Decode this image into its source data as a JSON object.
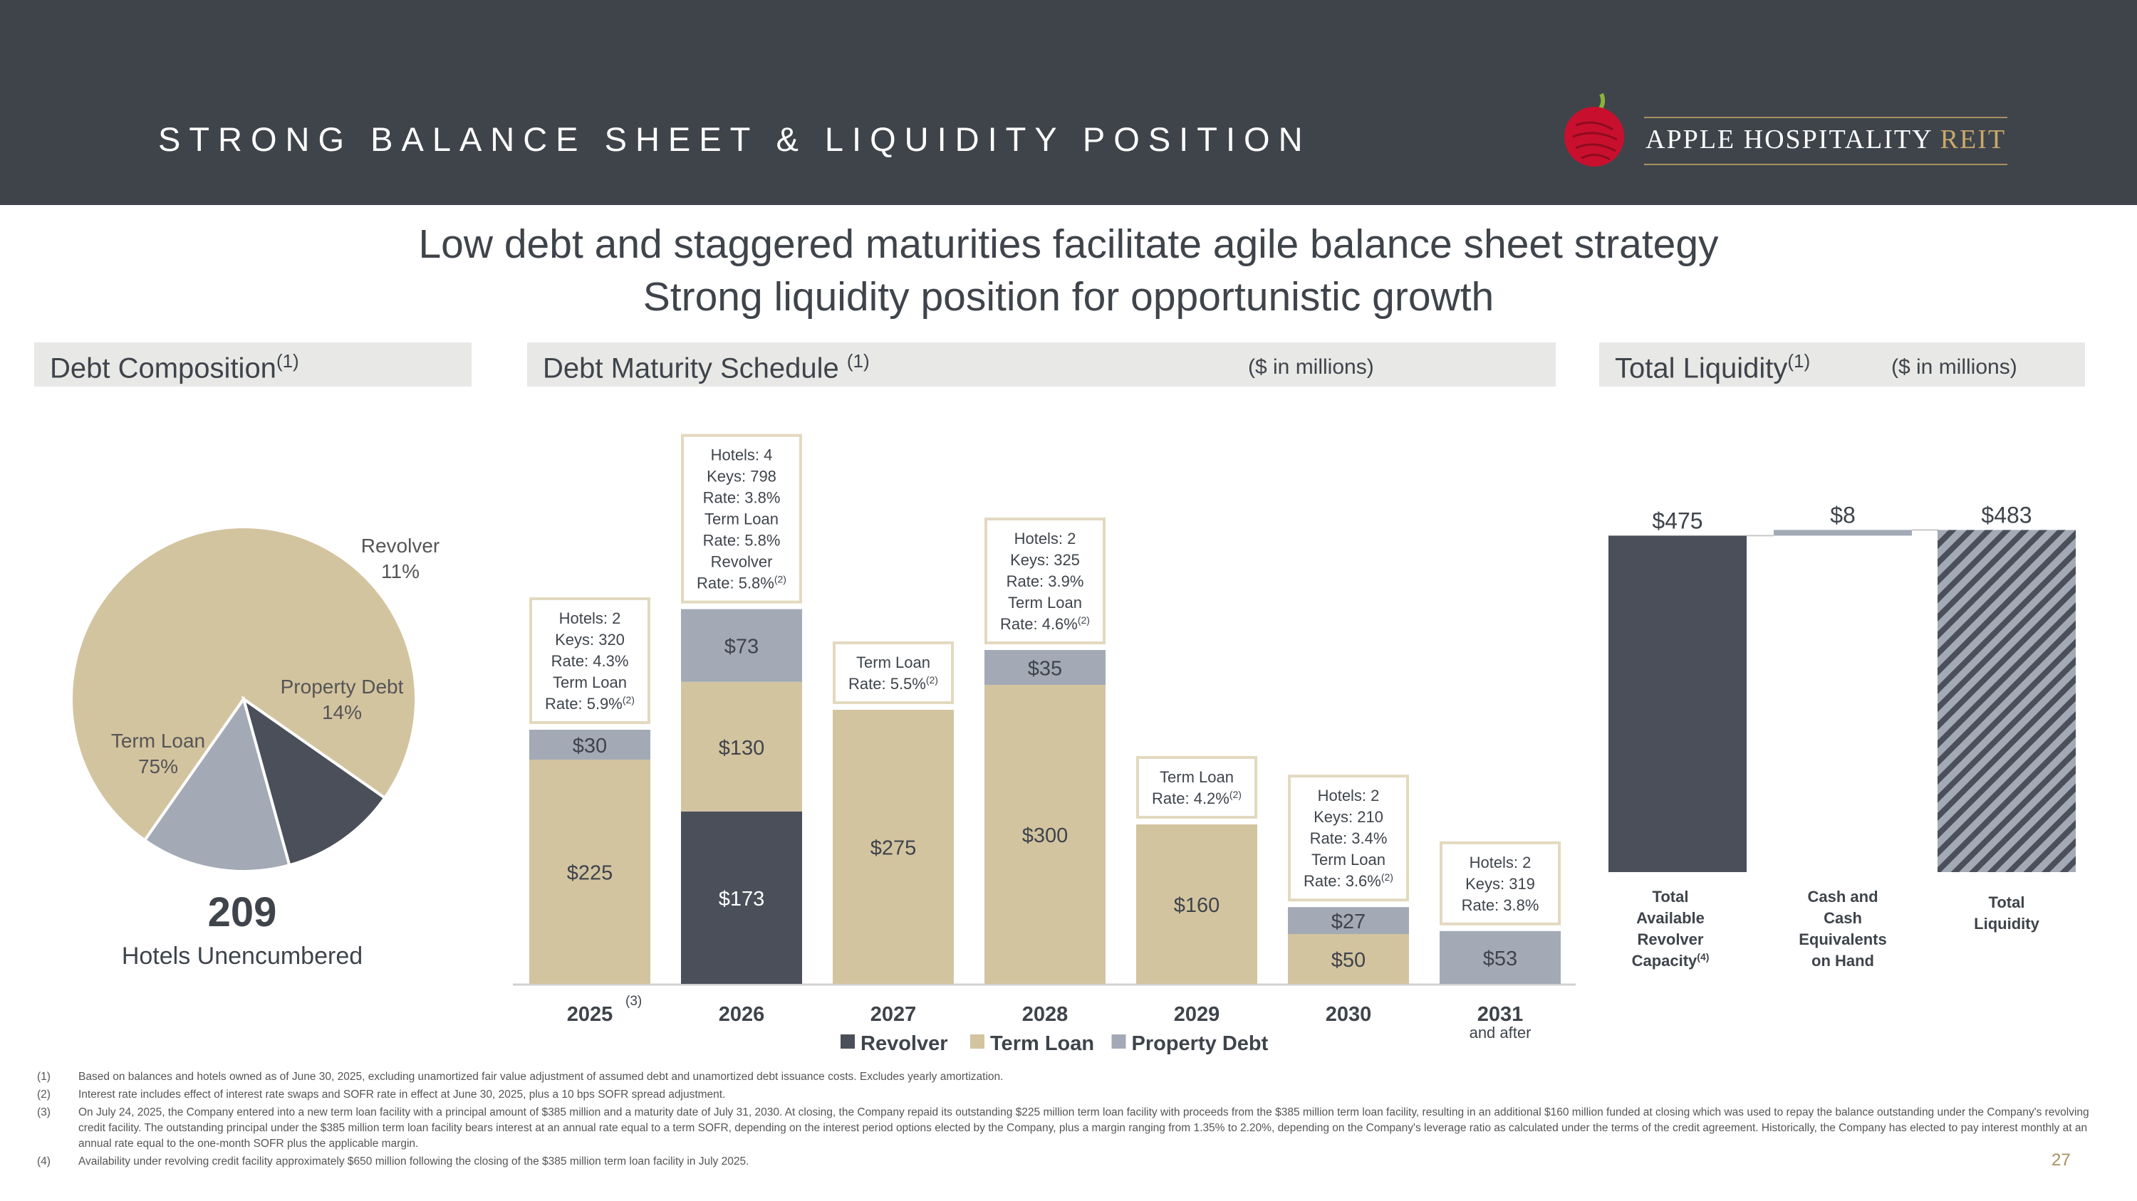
{
  "slide": {
    "title": "STRONG BALANCE SHEET & LIQUIDITY POSITION",
    "logo_text_main": "APPLE HOSPITALITY",
    "logo_text_accent": "REIT",
    "headline_1": "Low debt and staggered maturities facilitate agile balance sheet strategy",
    "headline_2": "Strong liquidity position for opportunistic growth",
    "page_number": "27"
  },
  "colors": {
    "header_bg": "#3f444b",
    "revolver": "#4a4f59",
    "term_loan": "#d3c4a0",
    "property_debt": "#a3aab6",
    "accent": "#c9a86a"
  },
  "debt_composition": {
    "title": "Debt Composition",
    "title_note": "(1)",
    "unencumbered_count": "209",
    "unencumbered_label": "Hotels Unencumbered"
  },
  "maturity_panel": {
    "title": "Debt Maturity Schedule",
    "title_note": "(1)",
    "units": "($ in millions)"
  },
  "liquidity_panel": {
    "title": "Total Liquidity",
    "title_note": "(1)",
    "units": "($ in millions)"
  },
  "chart_data": [
    {
      "type": "pie",
      "title": "Debt Composition",
      "slices": [
        {
          "label": "Term Loan",
          "pct_label": "75%",
          "value": 75,
          "color": "#d3c4a0"
        },
        {
          "label": "Revolver",
          "pct_label": "11%",
          "value": 11,
          "color": "#4a4f59"
        },
        {
          "label": "Property Debt",
          "pct_label": "14%",
          "value": 14,
          "color": "#a3aab6"
        }
      ]
    },
    {
      "type": "bar",
      "stacked": true,
      "title": "Debt Maturity Schedule",
      "units": "$ in millions",
      "categories": [
        "2025",
        "2026",
        "2027",
        "2028",
        "2029",
        "2030",
        "2031"
      ],
      "category_notes": [
        "(3)",
        "",
        "",
        "",
        "",
        "",
        ""
      ],
      "category_sublabels": [
        "",
        "",
        "",
        "",
        "",
        "",
        "and after"
      ],
      "series": [
        {
          "name": "Revolver",
          "color": "#4a4f59",
          "values": [
            0,
            173,
            0,
            0,
            0,
            0,
            0
          ],
          "labels": [
            "",
            "$173",
            "",
            "",
            "",
            "",
            ""
          ]
        },
        {
          "name": "Term Loan",
          "color": "#d3c4a0",
          "values": [
            225,
            130,
            275,
            300,
            160,
            50,
            0
          ],
          "labels": [
            "$225",
            "$130",
            "$275",
            "$300",
            "$160",
            "$50",
            ""
          ]
        },
        {
          "name": "Property Debt",
          "color": "#a3aab6",
          "values": [
            30,
            73,
            0,
            35,
            0,
            27,
            53
          ],
          "labels": [
            "$30",
            "$73",
            "",
            "$35",
            "",
            "$27",
            "$53"
          ]
        }
      ],
      "ylim": [
        0,
        420
      ],
      "annotations": [
        {
          "lines": [
            "Hotels: 2",
            "Keys: 320",
            "Rate: 4.3%",
            "Term Loan",
            "Rate: 5.9%"
          ],
          "note": "(2)"
        },
        {
          "lines": [
            "Hotels: 4",
            "Keys: 798",
            "Rate: 3.8%",
            "Term Loan",
            "Rate: 5.8%",
            "Revolver",
            "Rate: 5.8%"
          ],
          "note": "(2)"
        },
        {
          "lines": [
            "Term Loan",
            "Rate: 5.5%"
          ],
          "note": "(2)"
        },
        {
          "lines": [
            "Hotels: 2",
            "Keys: 325",
            "Rate: 3.9%",
            "Term Loan",
            "Rate: 4.6%"
          ],
          "note": "(2)"
        },
        {
          "lines": [
            "Term Loan",
            "Rate: 4.2%"
          ],
          "note": "(2)"
        },
        {
          "lines": [
            "Hotels: 2",
            "Keys: 210",
            "Rate: 3.4%",
            "Term Loan",
            "Rate: 3.6%"
          ],
          "note": "(2)"
        },
        {
          "lines": [
            "Hotels: 2",
            "Keys: 319",
            "Rate: 3.8%"
          ],
          "note": ""
        }
      ],
      "legend": [
        "Revolver",
        "Term Loan",
        "Property Debt"
      ]
    },
    {
      "type": "bar",
      "subtype": "waterfall",
      "title": "Total Liquidity",
      "units": "$ in millions",
      "bars": [
        {
          "value": 475,
          "label": "$475",
          "category": [
            "Total",
            "Available",
            "Revolver",
            "Capacity"
          ],
          "note": "(4)"
        },
        {
          "value": 8,
          "label": "$8",
          "category": [
            "Cash and",
            "Cash",
            "Equivalents",
            "on Hand"
          ],
          "note": ""
        },
        {
          "value": 483,
          "label": "$483",
          "category": [
            "Total",
            "Liquidity"
          ],
          "note": ""
        }
      ]
    }
  ],
  "footnotes": [
    {
      "num": "(1)",
      "text": "Based on balances and hotels owned as of June 30, 2025, excluding unamortized fair value adjustment of assumed debt and unamortized debt issuance costs. Excludes yearly amortization."
    },
    {
      "num": "(2)",
      "text": "Interest rate includes effect of interest rate swaps and SOFR rate in effect at June 30, 2025, plus a 10 bps SOFR spread adjustment."
    },
    {
      "num": "(3)",
      "text": "On July 24, 2025, the Company entered into a new term loan facility with a principal amount of $385 million and a maturity date of July 31, 2030. At closing, the Company repaid its outstanding $225 million term loan facility with proceeds from the $385 million term loan facility, resulting in an additional $160 million funded at closing which was used to repay the balance outstanding under the Company's revolving credit facility. The outstanding principal under the $385 million term loan facility bears interest at an annual rate equal to a term SOFR, depending on the interest period options elected by the Company, plus a margin ranging from 1.35% to 2.20%, depending on the Company's leverage ratio as calculated under the terms of the credit agreement. Historically, the Company has elected to pay interest monthly at an annual rate equal to the one-month SOFR plus the applicable margin."
    },
    {
      "num": "(4)",
      "text": "Availability under revolving credit facility approximately $650 million following the closing of the $385 million term loan facility in July 2025."
    }
  ]
}
